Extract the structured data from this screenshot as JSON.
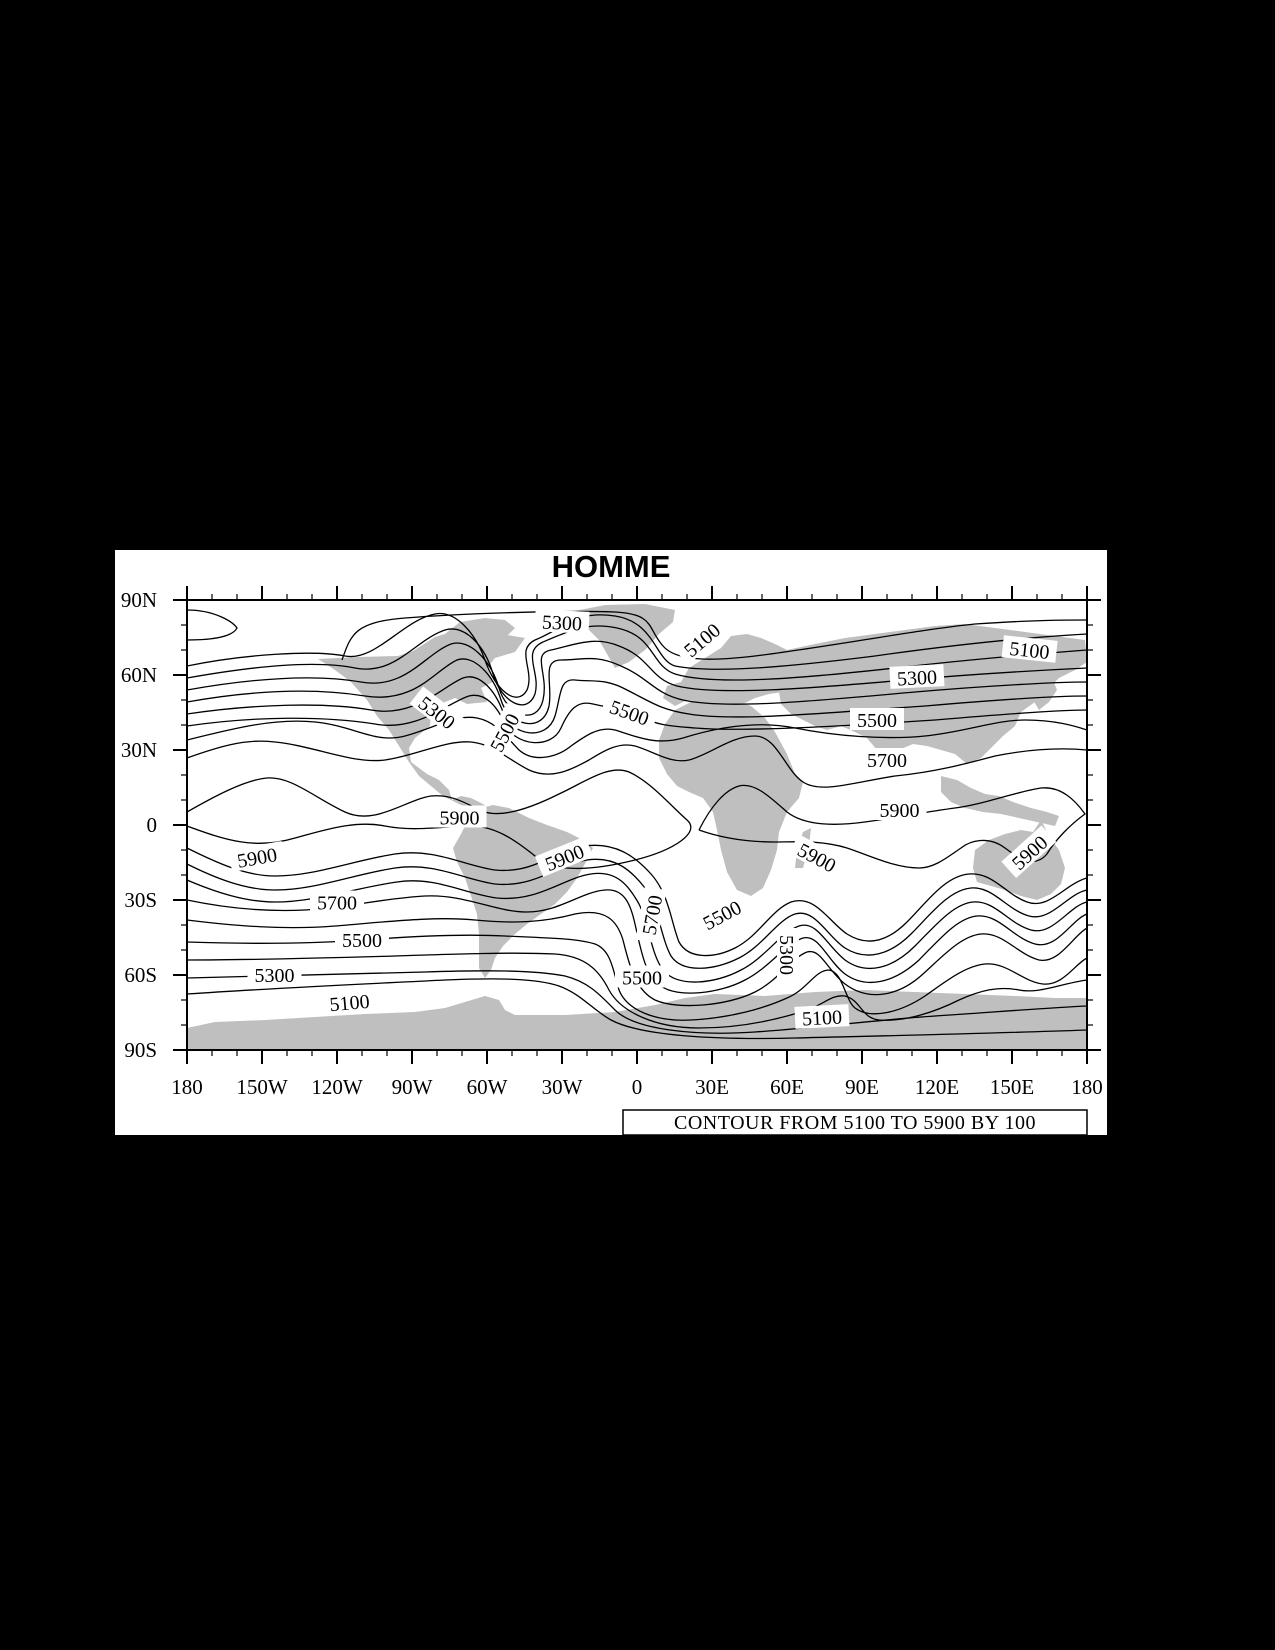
{
  "title": "HOMME",
  "info_label": "CONTOUR FROM 5100 TO 5900 BY 100",
  "colors": {
    "land": "#bfbfbf",
    "ocean": "#ffffff",
    "contour": "#000000",
    "background": "#000000"
  },
  "map": {
    "projection": "cylindrical-equidistant",
    "lon_range": [
      -180,
      180
    ],
    "lat_range": [
      -90,
      90
    ],
    "lon_ticks": [
      {
        "value": -180,
        "label": "180"
      },
      {
        "value": -150,
        "label": "150W"
      },
      {
        "value": -120,
        "label": "120W"
      },
      {
        "value": -90,
        "label": "90W"
      },
      {
        "value": -60,
        "label": "60W"
      },
      {
        "value": -30,
        "label": "30W"
      },
      {
        "value": 0,
        "label": "0"
      },
      {
        "value": 30,
        "label": "30E"
      },
      {
        "value": 60,
        "label": "60E"
      },
      {
        "value": 90,
        "label": "90E"
      },
      {
        "value": 120,
        "label": "120E"
      },
      {
        "value": 150,
        "label": "150E"
      },
      {
        "value": 180,
        "label": "180"
      }
    ],
    "lat_ticks": [
      {
        "value": 90,
        "label": "90N"
      },
      {
        "value": 60,
        "label": "60N"
      },
      {
        "value": 30,
        "label": "30N"
      },
      {
        "value": 0,
        "label": "0"
      },
      {
        "value": -30,
        "label": "30S"
      },
      {
        "value": -60,
        "label": "60S"
      },
      {
        "value": -90,
        "label": "90S"
      }
    ],
    "contour_levels": [
      5100,
      5200,
      5300,
      5400,
      5500,
      5600,
      5700,
      5800,
      5900
    ],
    "contour_labels": [
      {
        "text": "5300",
        "lon": -30,
        "lat": 81,
        "angle": 3
      },
      {
        "text": "5100",
        "lon": 26,
        "lat": 74,
        "angle": -40
      },
      {
        "text": "5100",
        "lon": 157,
        "lat": 70,
        "angle": 6
      },
      {
        "text": "5300",
        "lon": 112,
        "lat": 59,
        "angle": -3
      },
      {
        "text": "5500",
        "lon": 96,
        "lat": 42,
        "angle": 0
      },
      {
        "text": "5700",
        "lon": 100,
        "lat": 26,
        "angle": 0
      },
      {
        "text": "5900",
        "lon": 105,
        "lat": 6,
        "angle": 0
      },
      {
        "text": "5900",
        "lon": 72,
        "lat": -13,
        "angle": 28
      },
      {
        "text": "5900",
        "lon": 157,
        "lat": -11,
        "angle": -42
      },
      {
        "text": "5300",
        "lon": -80,
        "lat": 45,
        "angle": 38
      },
      {
        "text": "5500",
        "lon": -53,
        "lat": 37,
        "angle": -62
      },
      {
        "text": "5500",
        "lon": -3,
        "lat": 45,
        "angle": 20
      },
      {
        "text": "5900",
        "lon": -71,
        "lat": 3,
        "angle": 0
      },
      {
        "text": "5900",
        "lon": -29,
        "lat": -13,
        "angle": -22
      },
      {
        "text": "5900",
        "lon": -152,
        "lat": -13,
        "angle": -10
      },
      {
        "text": "5700",
        "lon": -120,
        "lat": -31,
        "angle": 0
      },
      {
        "text": "5500",
        "lon": -110,
        "lat": -46,
        "angle": 0
      },
      {
        "text": "5300",
        "lon": -145,
        "lat": -60,
        "angle": 0
      },
      {
        "text": "5100",
        "lon": -115,
        "lat": -71,
        "angle": -5
      },
      {
        "text": "5700",
        "lon": 6,
        "lat": -36,
        "angle": -80
      },
      {
        "text": "5500",
        "lon": 34,
        "lat": -36,
        "angle": -28
      },
      {
        "text": "5500",
        "lon": 2,
        "lat": -61,
        "angle": 0
      },
      {
        "text": "5300",
        "lon": 60,
        "lat": -52,
        "angle": 90
      },
      {
        "text": "5100",
        "lon": 74,
        "lat": -77,
        "angle": -3
      }
    ]
  }
}
